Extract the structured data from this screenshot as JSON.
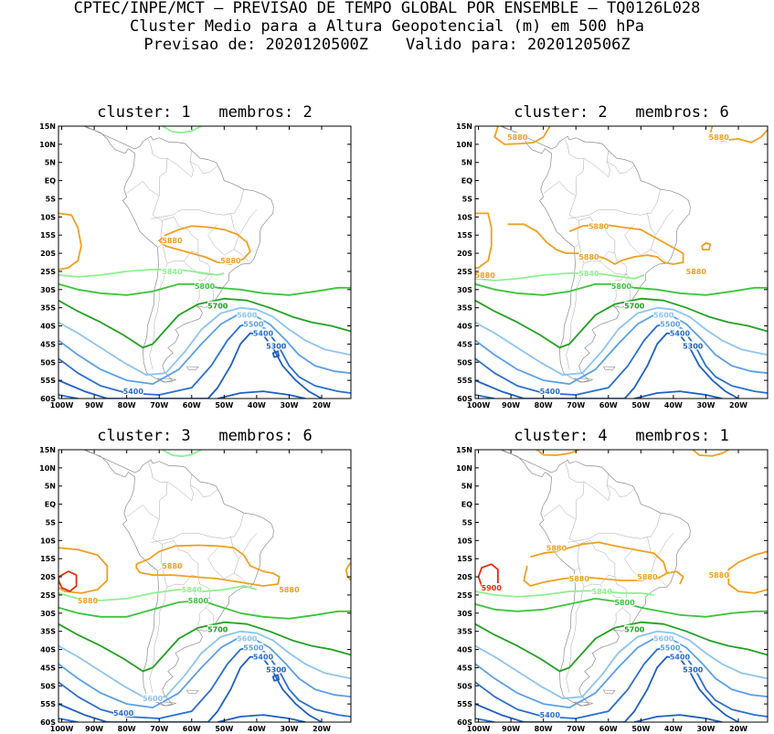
{
  "header": {
    "line1": "CPTEC/INPE/MCT – PREVISAO DE TEMPO GLOBAL POR ENSEMBLE – TQ0126L028",
    "line2": "Cluster Medio para a Altura Geopotencial (m) em 500 hPa",
    "line3": "Previsao de: 2020120500Z    Valido para: 2020120506Z"
  },
  "colors": {
    "c5300": "#1f5fbf",
    "c5400": "#2a6fd0",
    "c5500": "#5aa0e8",
    "c5600": "#8ec4f0",
    "c5700": "#22a022",
    "c5800": "#3ec43e",
    "c5840": "#8ef08e",
    "c5880": "#f0a020",
    "c5900": "#e03010",
    "coast": "#8c8c8c"
  },
  "chart_data": [
    {
      "type": "contour-map",
      "title": "cluster: 1   membros: 2",
      "xticks": [
        "100W",
        "90W",
        "80W",
        "70W",
        "60W",
        "50W",
        "40W",
        "30W",
        "20W"
      ],
      "yticks": [
        "15N",
        "10N",
        "5N",
        "EQ",
        "5S",
        "10S",
        "15S",
        "20S",
        "25S",
        "30S",
        "35S",
        "40S",
        "45S",
        "50S",
        "55S",
        "60S"
      ],
      "contour_labels": [
        {
          "text": "5880",
          "lon": -66,
          "lat": -16.5,
          "color": "c5880"
        },
        {
          "text": "5880",
          "lon": -48,
          "lat": -22,
          "color": "c5880"
        },
        {
          "text": "5840",
          "lon": -66,
          "lat": -25,
          "color": "c5840"
        },
        {
          "text": "5800",
          "lon": -56,
          "lat": -29,
          "color": "c5800"
        },
        {
          "text": "5700",
          "lon": -52,
          "lat": -34.5,
          "color": "c5700"
        },
        {
          "text": "5600",
          "lon": -43,
          "lat": -37,
          "color": "c5600"
        },
        {
          "text": "5500",
          "lon": -41,
          "lat": -39.5,
          "color": "c5500"
        },
        {
          "text": "5400",
          "lon": -38,
          "lat": -42,
          "color": "c5400"
        },
        {
          "text": "5300",
          "lon": -34,
          "lat": -45.5,
          "color": "c5300"
        },
        {
          "text": "5400",
          "lon": -78,
          "lat": -58,
          "color": "c5400"
        }
      ]
    },
    {
      "type": "contour-map",
      "title": "cluster: 2   membros: 6",
      "xticks": [
        "100W",
        "90W",
        "80W",
        "70W",
        "60W",
        "50W",
        "40W",
        "30W",
        "20W"
      ],
      "yticks": [
        "15N",
        "10N",
        "5N",
        "EQ",
        "5S",
        "10S",
        "15S",
        "20S",
        "25S",
        "30S",
        "35S",
        "40S",
        "45S",
        "50S",
        "55S",
        "60S"
      ],
      "contour_labels": [
        {
          "text": "5880",
          "lon": -88,
          "lat": 12,
          "color": "c5880"
        },
        {
          "text": "5880",
          "lon": -26,
          "lat": 12,
          "color": "c5880"
        },
        {
          "text": "5880",
          "lon": -63,
          "lat": -12.5,
          "color": "c5880"
        },
        {
          "text": "5880",
          "lon": -66,
          "lat": -21,
          "color": "c5880"
        },
        {
          "text": "5880",
          "lon": -98,
          "lat": -26,
          "color": "c5880"
        },
        {
          "text": "5880",
          "lon": -33,
          "lat": -25,
          "color": "c5880"
        },
        {
          "text": "5840",
          "lon": -66,
          "lat": -25.5,
          "color": "c5840"
        },
        {
          "text": "5800",
          "lon": -56,
          "lat": -29,
          "color": "c5800"
        },
        {
          "text": "5700",
          "lon": -52,
          "lat": -34.5,
          "color": "c5700"
        },
        {
          "text": "5600",
          "lon": -43,
          "lat": -37,
          "color": "c5600"
        },
        {
          "text": "5500",
          "lon": -41,
          "lat": -39.5,
          "color": "c5500"
        },
        {
          "text": "5400",
          "lon": -38,
          "lat": -42,
          "color": "c5400"
        },
        {
          "text": "5300",
          "lon": -34,
          "lat": -45.5,
          "color": "c5300"
        },
        {
          "text": "5400",
          "lon": -78,
          "lat": -58,
          "color": "c5400"
        }
      ]
    },
    {
      "type": "contour-map",
      "title": "cluster: 3   membros: 6",
      "xticks": [
        "100W",
        "90W",
        "80W",
        "70W",
        "60W",
        "50W",
        "40W",
        "30W",
        "20W"
      ],
      "yticks": [
        "15N",
        "10N",
        "5N",
        "EQ",
        "5S",
        "10S",
        "15S",
        "20S",
        "25S",
        "30S",
        "35S",
        "40S",
        "45S",
        "50S",
        "55S",
        "60S"
      ],
      "contour_labels": [
        {
          "text": "5880",
          "lon": -66,
          "lat": -17,
          "color": "c5880"
        },
        {
          "text": "5880",
          "lon": -30,
          "lat": -23.5,
          "color": "c5880"
        },
        {
          "text": "5880",
          "lon": -92,
          "lat": -26.5,
          "color": "c5880"
        },
        {
          "text": "5840",
          "lon": -60,
          "lat": -23.5,
          "color": "c5840"
        },
        {
          "text": "5800",
          "lon": -58,
          "lat": -26.5,
          "color": "c5800"
        },
        {
          "text": "5700",
          "lon": -52,
          "lat": -34.5,
          "color": "c5700"
        },
        {
          "text": "5600",
          "lon": -43,
          "lat": -37,
          "color": "c5600"
        },
        {
          "text": "5500",
          "lon": -41,
          "lat": -39.5,
          "color": "c5500"
        },
        {
          "text": "5400",
          "lon": -38,
          "lat": -42,
          "color": "c5400"
        },
        {
          "text": "5300",
          "lon": -34,
          "lat": -45.5,
          "color": "c5300"
        },
        {
          "text": "5600",
          "lon": -72,
          "lat": -53.5,
          "color": "c5600"
        },
        {
          "text": "5400",
          "lon": -81,
          "lat": -57.5,
          "color": "c5400"
        }
      ]
    },
    {
      "type": "contour-map",
      "title": "cluster: 4   membros: 1",
      "xticks": [
        "100W",
        "90W",
        "80W",
        "70W",
        "60W",
        "50W",
        "40W",
        "30W",
        "20W"
      ],
      "yticks": [
        "15N",
        "10N",
        "5N",
        "EQ",
        "5S",
        "10S",
        "15S",
        "20S",
        "25S",
        "30S",
        "35S",
        "40S",
        "45S",
        "50S",
        "55S",
        "60S"
      ],
      "contour_labels": [
        {
          "text": "5880",
          "lon": -76,
          "lat": -12,
          "color": "c5880"
        },
        {
          "text": "5880",
          "lon": -69,
          "lat": -20.5,
          "color": "c5880"
        },
        {
          "text": "5880",
          "lon": -48,
          "lat": -20,
          "color": "c5880"
        },
        {
          "text": "5880",
          "lon": -26,
          "lat": -19.5,
          "color": "c5880"
        },
        {
          "text": "5900",
          "lon": -96,
          "lat": -23,
          "color": "c5900"
        },
        {
          "text": "5840",
          "lon": -62,
          "lat": -24,
          "color": "c5840"
        },
        {
          "text": "5800",
          "lon": -55,
          "lat": -27,
          "color": "c5800"
        },
        {
          "text": "5700",
          "lon": -52,
          "lat": -34.5,
          "color": "c5700"
        },
        {
          "text": "5600",
          "lon": -43,
          "lat": -37,
          "color": "c5600"
        },
        {
          "text": "5500",
          "lon": -41,
          "lat": -39.5,
          "color": "c5500"
        },
        {
          "text": "5400",
          "lon": -38,
          "lat": -42,
          "color": "c5400"
        },
        {
          "text": "5300",
          "lon": -34,
          "lat": -45.5,
          "color": "c5300"
        },
        {
          "text": "5400",
          "lon": -78,
          "lat": -58,
          "color": "c5400"
        }
      ]
    }
  ]
}
